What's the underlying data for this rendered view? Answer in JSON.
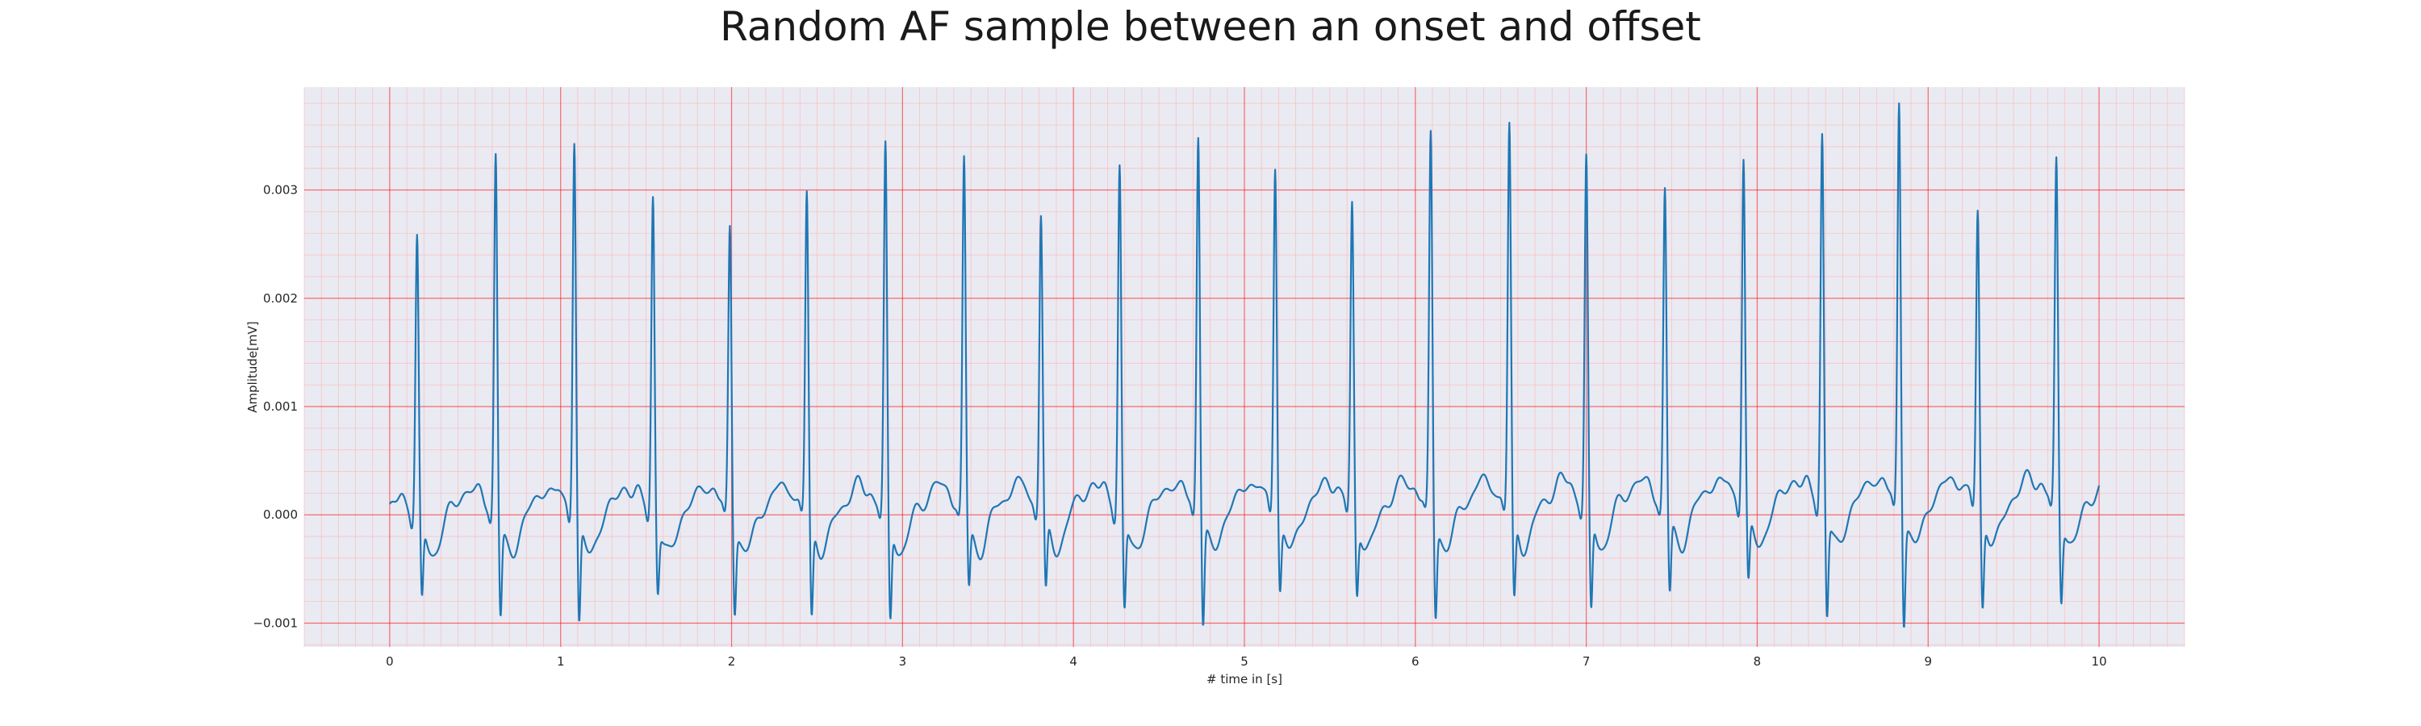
{
  "chart_data": {
    "type": "line",
    "title": "Random AF sample between an onset and offset",
    "xlabel": "# time in [s]",
    "ylabel": "Amplitude[mV]",
    "xlim": [
      -0.5,
      10.5
    ],
    "ylim": [
      -0.00122,
      0.00395
    ],
    "x_ticks": [
      0,
      1,
      2,
      3,
      4,
      5,
      6,
      7,
      8,
      9,
      10
    ],
    "x_tick_labels": [
      "0",
      "1",
      "2",
      "3",
      "4",
      "5",
      "6",
      "7",
      "8",
      "9",
      "10"
    ],
    "y_ticks": [
      -0.001,
      0.0,
      0.001,
      0.002,
      0.003
    ],
    "y_tick_labels": [
      "−0.001",
      "0.000",
      "0.001",
      "0.002",
      "0.003"
    ],
    "grid": true,
    "minor_grid": true,
    "colors": {
      "line": "#1f77b4",
      "background": "#eaeaf2",
      "major_grid": "#ff0000",
      "minor_grid": "#ffb3b3"
    },
    "series": [
      {
        "beats": [
          {
            "t": 0.16,
            "peak": 0.00256,
            "trough": -0.00072
          },
          {
            "t": 0.62,
            "peak": 0.00334,
            "trough": -0.00086
          },
          {
            "t": 1.08,
            "peak": 0.00348,
            "trough": -0.00094
          },
          {
            "t": 1.54,
            "peak": 0.00293,
            "trough": -0.00062
          },
          {
            "t": 1.99,
            "peak": 0.00265,
            "trough": -0.00079
          },
          {
            "t": 2.44,
            "peak": 0.00295,
            "trough": -0.00087
          },
          {
            "t": 2.9,
            "peak": 0.00334,
            "trough": -0.00093
          },
          {
            "t": 3.36,
            "peak": 0.00323,
            "trough": -0.00062
          },
          {
            "t": 3.81,
            "peak": 0.00274,
            "trough": -0.00068
          },
          {
            "t": 4.27,
            "peak": 0.00318,
            "trough": -0.00085
          },
          {
            "t": 4.73,
            "peak": 0.00348,
            "trough": -0.00097
          },
          {
            "t": 5.18,
            "peak": 0.00319,
            "trough": -0.00066
          },
          {
            "t": 5.63,
            "peak": 0.0028,
            "trough": -0.0007
          },
          {
            "t": 6.09,
            "peak": 0.00343,
            "trough": -0.0009
          },
          {
            "t": 6.55,
            "peak": 0.00352,
            "trough": -0.00078
          },
          {
            "t": 7.0,
            "peak": 0.0032,
            "trough": -0.00091
          },
          {
            "t": 7.46,
            "peak": 0.00293,
            "trough": -0.00072
          },
          {
            "t": 7.92,
            "peak": 0.00324,
            "trough": -0.00064
          },
          {
            "t": 8.38,
            "peak": 0.00344,
            "trough": -0.00093
          },
          {
            "t": 8.83,
            "peak": 0.00374,
            "trough": -0.00099
          },
          {
            "t": 9.29,
            "peak": 0.00273,
            "trough": -0.00086
          },
          {
            "t": 9.75,
            "peak": 0.00314,
            "trough": -0.00079
          }
        ],
        "x_start": 0.0,
        "x_end": 10.0,
        "y_start": 0.0001,
        "y_end": 0.00027
      }
    ]
  }
}
